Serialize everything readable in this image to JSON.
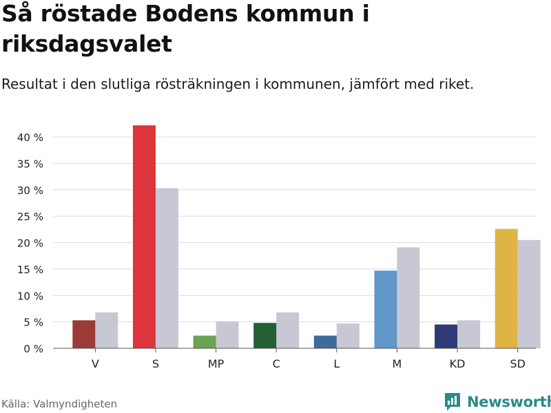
{
  "title": "Så röstade Bodens kommun i riksdagsvalet",
  "subtitle": "Resultat i den slutliga rösträkningen i kommunen, jämfört med riket.",
  "source": "Källa: Valmyndigheten",
  "brand": {
    "name": "Newsworthy",
    "logo_icon": "bar-chart-speech-bubble-icon",
    "color": "#2a8a8a"
  },
  "chart_data": {
    "type": "bar",
    "categories": [
      "V",
      "S",
      "MP",
      "C",
      "L",
      "M",
      "KD",
      "SD"
    ],
    "series": [
      {
        "values": [
          5.3,
          42.2,
          2.4,
          4.8,
          2.4,
          14.7,
          4.5,
          22.6
        ],
        "colors": [
          "#9b3a36",
          "#dd353c",
          "#6aa351",
          "#245f33",
          "#3e6b9e",
          "#6198c9",
          "#2f3b74",
          "#e0b444"
        ]
      },
      {
        "values": [
          6.8,
          30.3,
          5.1,
          6.8,
          4.7,
          19.1,
          5.3,
          20.5
        ],
        "color": "#c8c8d4"
      }
    ],
    "y_ticks": [
      "0 %",
      "5 %",
      "10 %",
      "15 %",
      "20 %",
      "25 %",
      "30 %",
      "35 %",
      "40 %"
    ],
    "ylim": [
      0,
      40
    ],
    "grid": true,
    "legend": "none"
  }
}
